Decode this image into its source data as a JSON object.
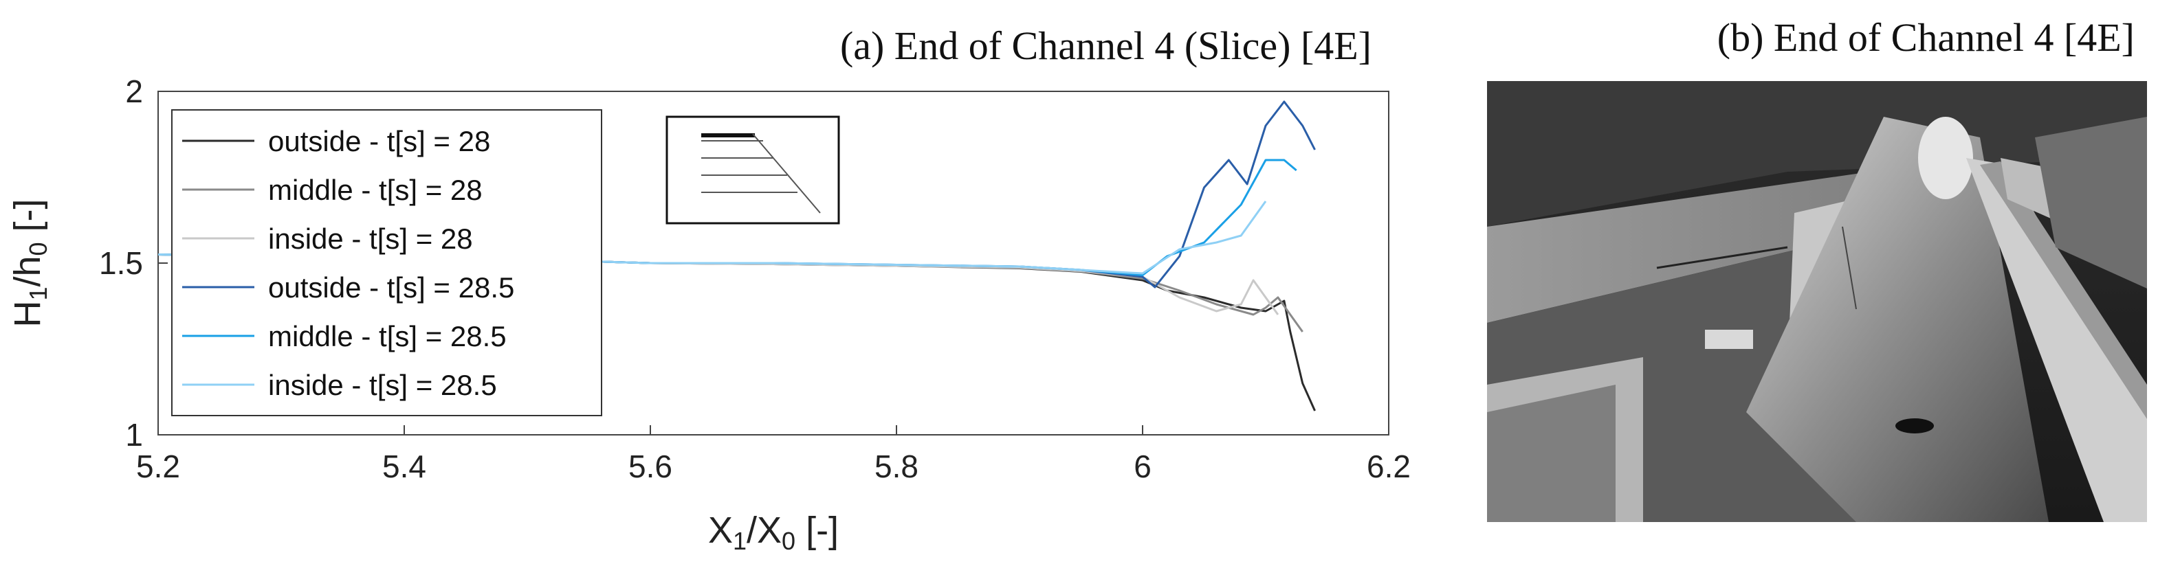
{
  "panels": {
    "a_title": "(a) End of Channel 4 (Slice)  [4E]",
    "b_title": "(b) End of Channel 4 [4E]"
  },
  "chart_data": {
    "type": "line",
    "title": "(a) End of Channel 4 (Slice)  [4E]",
    "xlabel": "X1/X0 [-]",
    "ylabel": "H1/h0 [-]",
    "xlim": [
      5.2,
      6.2
    ],
    "ylim": [
      1,
      2
    ],
    "xticks": [
      5.2,
      5.4,
      5.6,
      5.8,
      6,
      6.2
    ],
    "xtick_labels": [
      "5.2",
      "5.4",
      "5.6",
      "5.8",
      "6",
      "6.2"
    ],
    "yticks": [
      1,
      1.5,
      2
    ],
    "ytick_labels": [
      "1",
      "1.5",
      "2"
    ],
    "grid": false,
    "legend_position": "top-left",
    "series": [
      {
        "name": "outside - t[s] = 28",
        "color": "#2b2b2b",
        "x": [
          5.2,
          5.3,
          5.4,
          5.5,
          5.6,
          5.7,
          5.8,
          5.9,
          5.95,
          6.0,
          6.02,
          6.05,
          6.08,
          6.1,
          6.115,
          6.12,
          6.13,
          6.14
        ],
        "y": [
          1.525,
          1.52,
          1.515,
          1.51,
          1.5,
          1.497,
          1.492,
          1.485,
          1.475,
          1.45,
          1.42,
          1.4,
          1.37,
          1.36,
          1.39,
          1.3,
          1.15,
          1.07
        ]
      },
      {
        "name": "middle - t[s] = 28",
        "color": "#8a8a8a",
        "x": [
          5.2,
          5.3,
          5.4,
          5.5,
          5.6,
          5.7,
          5.8,
          5.9,
          5.95,
          6.0,
          6.03,
          6.06,
          6.09,
          6.1,
          6.11,
          6.12,
          6.13
        ],
        "y": [
          1.525,
          1.52,
          1.515,
          1.51,
          1.5,
          1.497,
          1.492,
          1.486,
          1.476,
          1.455,
          1.42,
          1.38,
          1.35,
          1.37,
          1.4,
          1.35,
          1.3
        ]
      },
      {
        "name": "inside - t[s] = 28",
        "color": "#c9c9c9",
        "x": [
          5.2,
          5.3,
          5.4,
          5.5,
          5.6,
          5.7,
          5.8,
          5.9,
          5.95,
          6.0,
          6.03,
          6.06,
          6.08,
          6.09,
          6.1,
          6.11
        ],
        "y": [
          1.525,
          1.52,
          1.515,
          1.51,
          1.5,
          1.497,
          1.492,
          1.487,
          1.477,
          1.46,
          1.4,
          1.36,
          1.38,
          1.45,
          1.4,
          1.35
        ]
      },
      {
        "name": "outside - t[s] = 28.5",
        "color": "#2a5ea8",
        "x": [
          5.2,
          5.3,
          5.4,
          5.5,
          5.6,
          5.7,
          5.8,
          5.9,
          5.95,
          6.0,
          6.01,
          6.03,
          6.05,
          6.07,
          6.085,
          6.1,
          6.115,
          6.13,
          6.14
        ],
        "y": [
          1.525,
          1.52,
          1.515,
          1.51,
          1.5,
          1.5,
          1.495,
          1.49,
          1.48,
          1.46,
          1.43,
          1.52,
          1.72,
          1.8,
          1.73,
          1.9,
          1.97,
          1.9,
          1.83
        ]
      },
      {
        "name": "middle - t[s] = 28.5",
        "color": "#1aa0e6",
        "x": [
          5.2,
          5.3,
          5.4,
          5.5,
          5.6,
          5.7,
          5.8,
          5.9,
          5.95,
          6.0,
          6.02,
          6.05,
          6.08,
          6.1,
          6.115,
          6.125
        ],
        "y": [
          1.525,
          1.52,
          1.515,
          1.51,
          1.5,
          1.5,
          1.495,
          1.49,
          1.48,
          1.465,
          1.52,
          1.56,
          1.67,
          1.8,
          1.8,
          1.77
        ]
      },
      {
        "name": "inside - t[s] = 28.5",
        "color": "#8fd0f5",
        "x": [
          5.2,
          5.3,
          5.4,
          5.5,
          5.6,
          5.7,
          5.8,
          5.9,
          5.95,
          6.0,
          6.03,
          6.06,
          6.08,
          6.1
        ],
        "y": [
          1.525,
          1.52,
          1.515,
          1.51,
          1.5,
          1.5,
          1.495,
          1.49,
          1.48,
          1.47,
          1.54,
          1.56,
          1.58,
          1.68
        ]
      }
    ]
  }
}
